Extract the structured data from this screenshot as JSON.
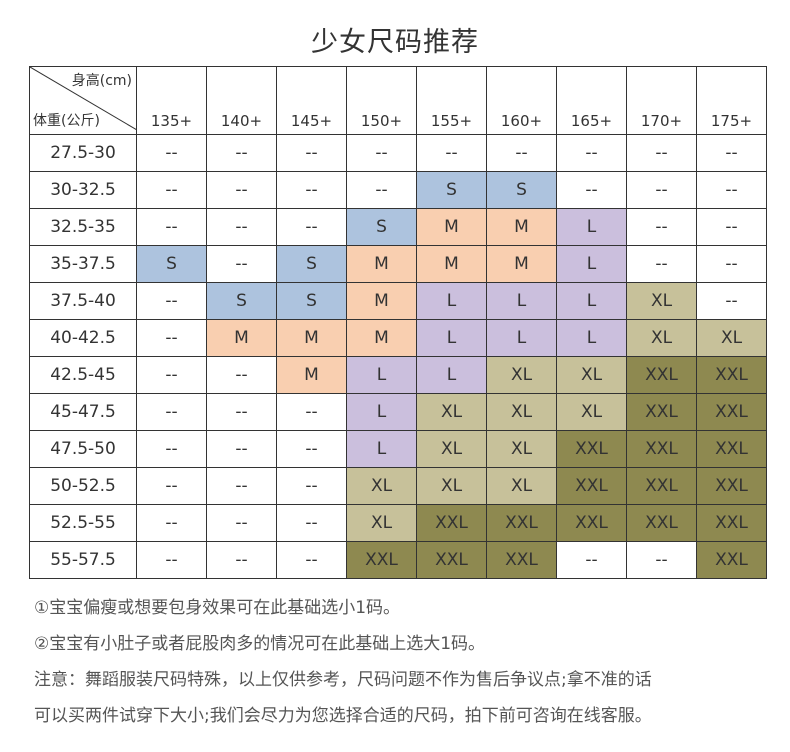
{
  "title": "少女尺码推荐",
  "header": {
    "height_label": "身高(cm)",
    "weight_label": "体重(公斤)",
    "columns": [
      "135+",
      "140+",
      "145+",
      "150+",
      "155+",
      "160+",
      "165+",
      "170+",
      "175+"
    ]
  },
  "rows": [
    {
      "weight": "27.5-30",
      "sizes": [
        "--",
        "--",
        "--",
        "--",
        "--",
        "--",
        "--",
        "--",
        "--"
      ]
    },
    {
      "weight": "30-32.5",
      "sizes": [
        "--",
        "--",
        "--",
        "--",
        "S",
        "S",
        "--",
        "--",
        "--"
      ]
    },
    {
      "weight": "32.5-35",
      "sizes": [
        "--",
        "--",
        "--",
        "S",
        "M",
        "M",
        "L",
        "--",
        "--"
      ]
    },
    {
      "weight": "35-37.5",
      "sizes": [
        "S",
        "--",
        "S",
        "M",
        "M",
        "M",
        "L",
        "--",
        "--"
      ]
    },
    {
      "weight": "37.5-40",
      "sizes": [
        "--",
        "S",
        "S",
        "M",
        "L",
        "L",
        "L",
        "XL",
        "--"
      ]
    },
    {
      "weight": "40-42.5",
      "sizes": [
        "--",
        "M",
        "M",
        "M",
        "L",
        "L",
        "L",
        "XL",
        "XL"
      ]
    },
    {
      "weight": "42.5-45",
      "sizes": [
        "--",
        "--",
        "M",
        "L",
        "L",
        "XL",
        "XL",
        "XXL",
        "XXL"
      ]
    },
    {
      "weight": "45-47.5",
      "sizes": [
        "--",
        "--",
        "--",
        "L",
        "XL",
        "XL",
        "XL",
        "XXL",
        "XXL"
      ]
    },
    {
      "weight": "47.5-50",
      "sizes": [
        "--",
        "--",
        "--",
        "L",
        "XL",
        "XL",
        "XXL",
        "XXL",
        "XXL"
      ]
    },
    {
      "weight": "50-52.5",
      "sizes": [
        "--",
        "--",
        "--",
        "XL",
        "XL",
        "XL",
        "XXL",
        "XXL",
        "XXL"
      ]
    },
    {
      "weight": "52.5-55",
      "sizes": [
        "--",
        "--",
        "--",
        "XL",
        "XXL",
        "XXL",
        "XXL",
        "XXL",
        "XXL"
      ]
    },
    {
      "weight": "55-57.5",
      "sizes": [
        "--",
        "--",
        "--",
        "XXL",
        "XXL",
        "XXL",
        "--",
        "--",
        "XXL"
      ]
    }
  ],
  "colors": {
    "S": "#adc3de",
    "M": "#f9cfb0",
    "L": "#cbbfdd",
    "XL": "#c7c19a",
    "XXL": "#8e8950"
  },
  "notes": [
    "①宝宝偏瘦或想要包身效果可在此基础选小1码。",
    "②宝宝有小肚子或者屁股肉多的情况可在此基础上选大1码。",
    "注意：舞蹈服装尺码特殊，以上仅供参考，尺码问题不作为售后争议点;拿不准的话",
    "可以买两件试穿下大小;我们会尽力为您选择合适的尺码，拍下前可咨询在线客服。"
  ]
}
